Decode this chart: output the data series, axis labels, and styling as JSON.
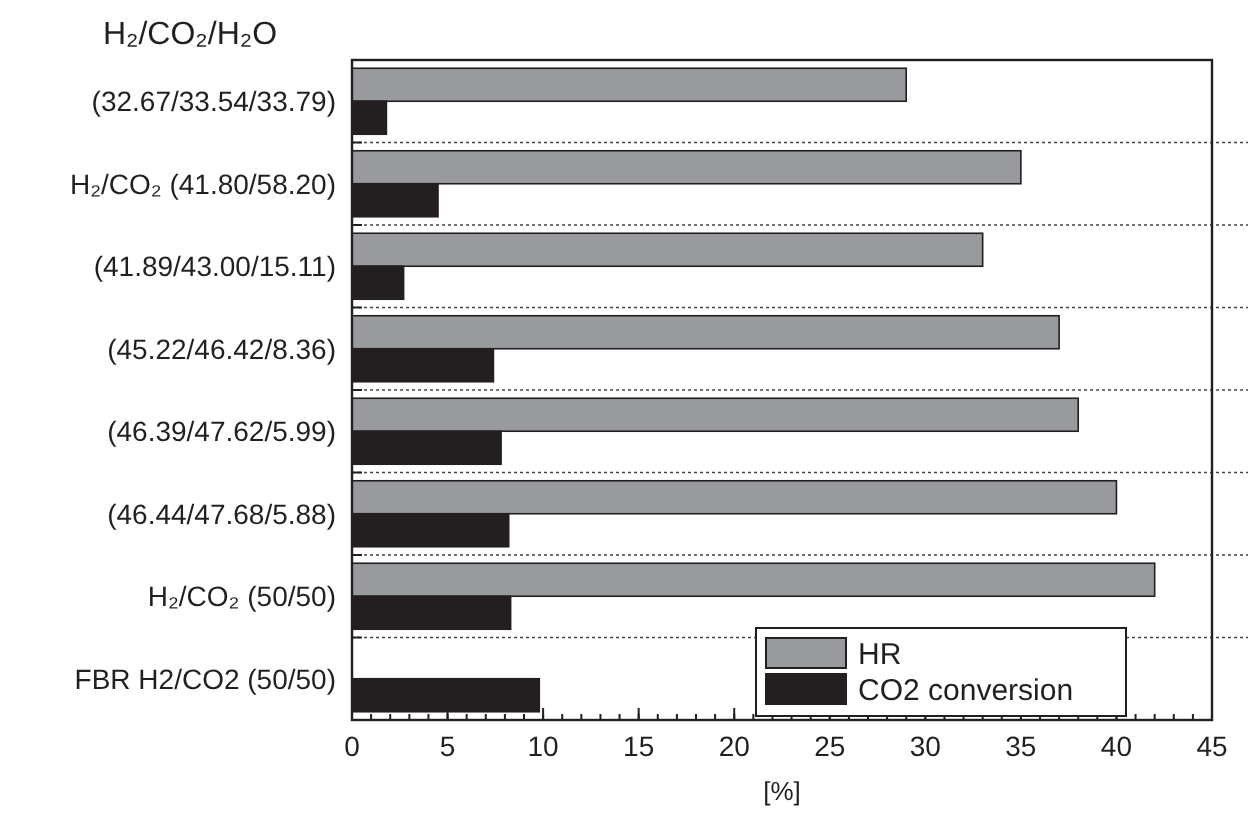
{
  "chart_data": {
    "type": "bar",
    "orientation": "horizontal",
    "ylabel": "H₂/CO₂/H₂O",
    "xlabel": "[%]",
    "categories": [
      "(32.67/33.54/33.79)",
      "H₂/CO₂  (41.80/58.20)",
      "(41.89/43.00/15.11)",
      "(45.22/46.42/8.36)",
      "(46.39/47.62/5.99)",
      "(46.44/47.68/5.88)",
      "H₂/CO₂  (50/50)",
      "FBR H2/CO2 (50/50)"
    ],
    "series": [
      {
        "name": "HR",
        "color": "#999a9e",
        "values": [
          29,
          35,
          33,
          37,
          38,
          40,
          42,
          null
        ]
      },
      {
        "name": "CO2 conversion",
        "color": "#231f20",
        "values": [
          1.8,
          4.5,
          2.7,
          7.4,
          7.8,
          8.2,
          8.3,
          9.8
        ]
      }
    ],
    "xlim": [
      0,
      45
    ],
    "xticks": [
      0,
      5,
      10,
      15,
      20,
      25,
      30,
      35,
      40,
      45
    ],
    "grid": "y",
    "legend": "bottom right"
  }
}
